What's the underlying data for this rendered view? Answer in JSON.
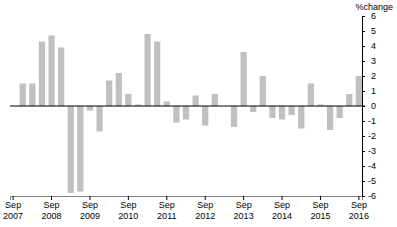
{
  "chart_data": {
    "type": "bar",
    "y_label": "%change",
    "categories": [
      "Sep 2007",
      null,
      null,
      null,
      "Sep 2008",
      null,
      null,
      null,
      "Sep 2009",
      null,
      null,
      null,
      "Sep 2010",
      null,
      null,
      null,
      "Sep 2011",
      null,
      null,
      null,
      "Sep 2012",
      null,
      null,
      null,
      "Sep 2013",
      null,
      null,
      null,
      "Sep 2014",
      null,
      null,
      null,
      "Sep 2015",
      null,
      null,
      null,
      "Sep 2016"
    ],
    "values": [
      null,
      1.5,
      1.5,
      4.3,
      4.7,
      3.9,
      -5.8,
      -5.7,
      -0.3,
      -1.7,
      1.7,
      2.2,
      0.8,
      0.1,
      4.8,
      4.3,
      0.3,
      -1.1,
      -0.9,
      0.7,
      -1.3,
      0.8,
      0.0,
      -1.4,
      3.6,
      -0.4,
      2.0,
      -0.8,
      -0.9,
      -0.6,
      -1.5,
      1.5,
      0.1,
      -1.6,
      -0.8,
      0.8,
      2.0
    ],
    "color": "#c0c0c0",
    "ylim": [
      -6,
      6
    ],
    "yticks": [
      -6,
      -5,
      -4,
      -3,
      -2,
      -1,
      0,
      1,
      2,
      3,
      4,
      5,
      6
    ],
    "grid": false
  }
}
